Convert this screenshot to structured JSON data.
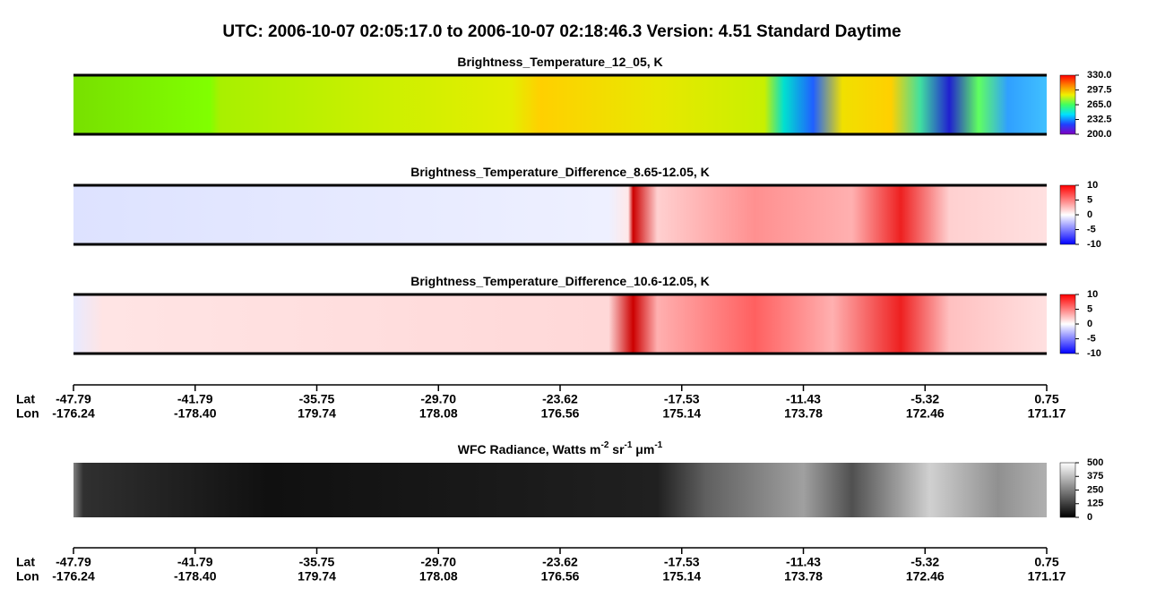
{
  "title": "UTC:  2006-10-07   02:05:17.0  to  2006-10-07   02:18:46.3    Version: 4.51  Standard Daytime",
  "panels": [
    {
      "title": [
        "Brightness_Temperature_12_05, K"
      ],
      "colorbar": {
        "lim": [
          200,
          330
        ],
        "colormap": [
          "#8000c0",
          "#2040ff",
          "#00e0ff",
          "#40ff60",
          "#f0f000",
          "#ff8000",
          "#ff0000"
        ],
        "ticks": [
          {
            "value": 330,
            "label": "330.0"
          },
          {
            "value": 297.5,
            "label": "297.5"
          },
          {
            "value": 265,
            "label": "265.0"
          },
          {
            "value": 232.5,
            "label": "232.5"
          },
          {
            "value": 200,
            "label": "200.0"
          }
        ]
      }
    },
    {
      "title": [
        "Brightness_Temperature_Difference_8.65-12.05, K"
      ],
      "colorbar": {
        "lim": [
          -10,
          10
        ],
        "colormap": [
          "#0000ff",
          "#ffffff",
          "#ff0000"
        ],
        "ticks": [
          10,
          5,
          0,
          -5,
          -10
        ]
      }
    },
    {
      "title": [
        "Brightness_Temperature_Difference_10.6-12.05, K"
      ],
      "colorbar": {
        "lim": [
          -10,
          10
        ],
        "colormap": [
          "#0000ff",
          "#ffffff",
          "#ff0000"
        ],
        "ticks": [
          10,
          5,
          0,
          -5,
          -10
        ]
      }
    },
    {
      "title": [
        "WFC Radiance, Watts m",
        "-2",
        " sr",
        "-1",
        " μm",
        "-1"
      ],
      "colorbar": {
        "lim": [
          0,
          500
        ],
        "colormap": [
          "#000000",
          "#ffffff"
        ],
        "ticks": [
          500,
          375,
          250,
          125,
          0
        ]
      }
    }
  ],
  "axes": [
    {
      "lat_label": "Lat",
      "lon_label": "Lon",
      "lat": [
        "-47.79",
        "-41.79",
        "-35.75",
        "-29.70",
        "-23.62",
        "-17.53",
        "-11.43",
        "-5.32",
        "0.75"
      ],
      "lon": [
        "-176.24",
        "-178.40",
        "179.74",
        "178.08",
        "176.56",
        "175.14",
        "173.78",
        "172.46",
        "171.17"
      ]
    },
    {
      "lat_label": "Lat",
      "lon_label": "Lon",
      "lat": [
        "-47.79",
        "-41.79",
        "-35.75",
        "-29.70",
        "-23.62",
        "-17.53",
        "-11.43",
        "-5.32",
        "0.75"
      ],
      "lon": [
        "-176.24",
        "-178.40",
        "179.74",
        "178.08",
        "176.56",
        "175.14",
        "173.78",
        "172.46",
        "171.17"
      ]
    }
  ]
}
